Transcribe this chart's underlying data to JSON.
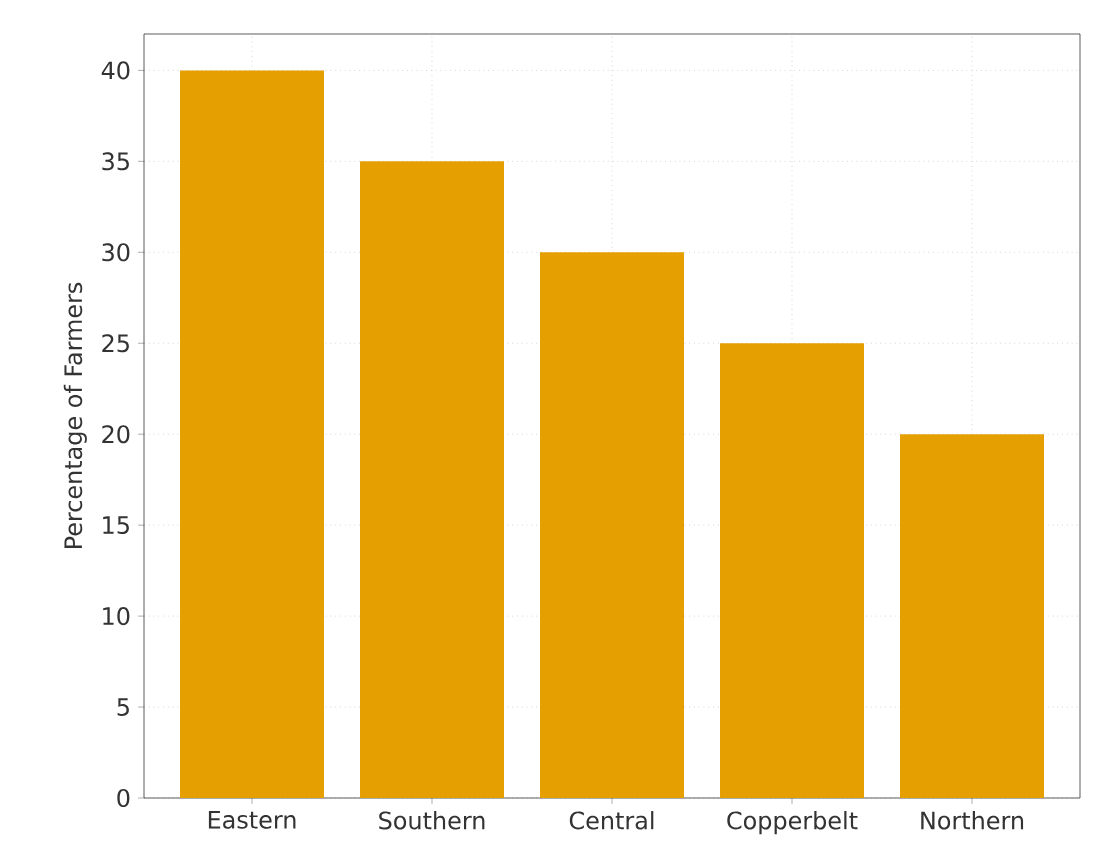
{
  "chart_data": {
    "type": "bar",
    "ylabel": "Percentage of Farmers",
    "categories": [
      "Eastern",
      "Southern",
      "Central",
      "Copperbelt",
      "Northern"
    ],
    "values": [
      40,
      35,
      30,
      25,
      20
    ],
    "color": "#e69f00",
    "ylim": [
      0,
      42
    ],
    "yticks": [
      0,
      5,
      10,
      15,
      20,
      25,
      30,
      35,
      40
    ],
    "grid": true
  }
}
